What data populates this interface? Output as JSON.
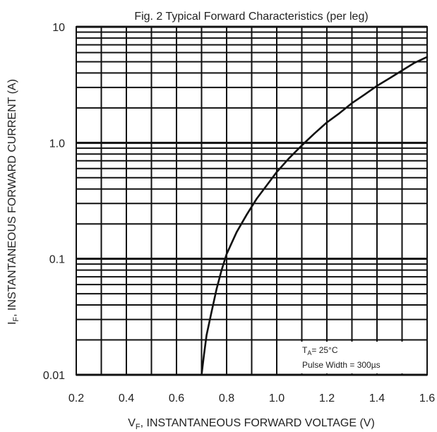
{
  "chart_data": {
    "type": "line",
    "title": "Fig. 2 Typical Forward Characteristics (per leg)",
    "xlabel": {
      "main": "V",
      "sub": "F",
      "rest": ", INSTANTANEOUS FORWARD VOLTAGE (V)"
    },
    "ylabel": {
      "main": "I",
      "sub": "F",
      "rest": ", INSTANTANEOUS FORWARD CURRENT (A)"
    },
    "x_ticks": [
      "0.2",
      "0.4",
      "0.6",
      "0.8",
      "1.0",
      "1.2",
      "1.4",
      "1.6"
    ],
    "y_ticks": [
      {
        "value": 0.01,
        "label": "0.01"
      },
      {
        "value": 0.1,
        "label": "0.1"
      },
      {
        "value": 1,
        "label": "1.0"
      },
      {
        "value": 10,
        "label": "10"
      }
    ],
    "xlim": [
      0.2,
      1.6
    ],
    "ylim": [
      0.01,
      10
    ],
    "y_scale": "log",
    "grid": true,
    "series": [
      {
        "color": "#111111",
        "points": [
          [
            0.7,
            0.01
          ],
          [
            0.71,
            0.015
          ],
          [
            0.72,
            0.022
          ],
          [
            0.74,
            0.035
          ],
          [
            0.76,
            0.055
          ],
          [
            0.78,
            0.08
          ],
          [
            0.8,
            0.11
          ],
          [
            0.84,
            0.17
          ],
          [
            0.88,
            0.24
          ],
          [
            0.92,
            0.33
          ],
          [
            0.96,
            0.43
          ],
          [
            1.0,
            0.56
          ],
          [
            1.05,
            0.74
          ],
          [
            1.1,
            0.95
          ],
          [
            1.15,
            1.2
          ],
          [
            1.2,
            1.5
          ],
          [
            1.25,
            1.8
          ],
          [
            1.3,
            2.2
          ],
          [
            1.35,
            2.6
          ],
          [
            1.4,
            3.1
          ],
          [
            1.45,
            3.6
          ],
          [
            1.5,
            4.2
          ],
          [
            1.55,
            4.9
          ],
          [
            1.6,
            5.5
          ]
        ]
      }
    ],
    "annotation": {
      "line1_main": "T",
      "line1_sub": "A",
      "line1_rest": "= 25°C",
      "line2": "Pulse Width = 300µs"
    }
  }
}
